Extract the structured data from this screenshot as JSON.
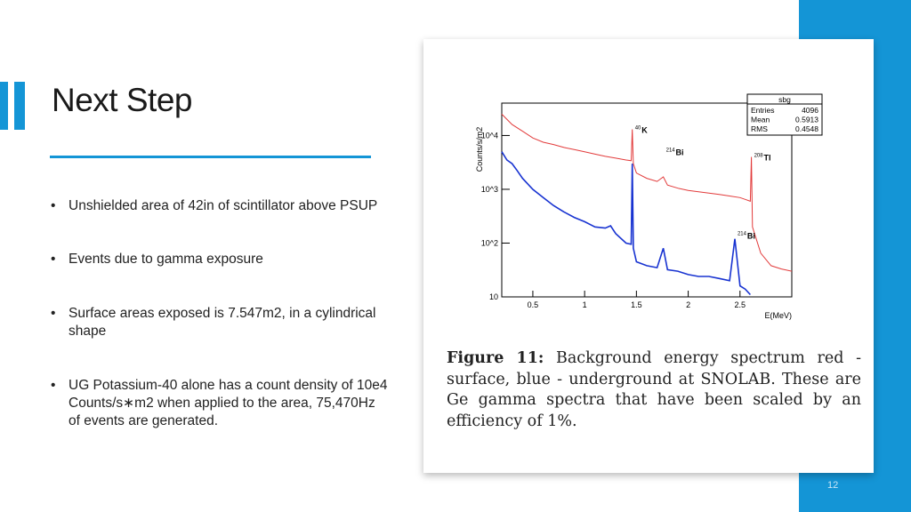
{
  "slide": {
    "title": "Next Step",
    "bullets": [
      "Unshielded area of 42in of scintillator above PSUP",
      "Events due to gamma exposure",
      "Surface areas exposed is 7.547m2, in a cylindrical shape",
      "UG Potassium-40 alone has a count density of 10e4 Counts/s∗m2 when applied to the area, 75,470Hz of events are generated."
    ],
    "page_number": "12"
  },
  "figure": {
    "caption_label": "Figure 11:",
    "caption_text": "Background energy spectrum red - surface, blue - underground at SNOLAB. These are Ge gamma spectra that have been scaled by an efficiency of 1%."
  },
  "chart_data": {
    "type": "line",
    "xlabel": "E(MeV)",
    "ylabel": "Counts/s/m2",
    "xlim": [
      0.2,
      3.0
    ],
    "ylim": [
      10,
      40000
    ],
    "y_scale": "log",
    "x_ticks": [
      0.5,
      1,
      1.5,
      2,
      2.5
    ],
    "x_tick_labels": [
      "0.5",
      "1",
      "1.5",
      "2",
      "2.5"
    ],
    "y_ticks": [
      10,
      100,
      1000,
      10000
    ],
    "y_tick_labels": [
      "10",
      "10^2",
      "10^3",
      "10^4"
    ],
    "stats_box": {
      "title": "sbg",
      "rows": [
        {
          "label": "Entries",
          "value": "4096"
        },
        {
          "label": "Mean",
          "value": "0.5913"
        },
        {
          "label": "RMS",
          "value": "0.4548"
        }
      ]
    },
    "annotations": [
      {
        "sup": "40",
        "text": "K",
        "x": 1.46,
        "y": 13000
      },
      {
        "sup": "214",
        "text": "Bi",
        "x": 1.76,
        "y": 5000
      },
      {
        "sup": "208",
        "text": "Tl",
        "x": 2.61,
        "y": 4000
      },
      {
        "sup": "214",
        "text": "Bi",
        "x": 2.45,
        "y": 140
      }
    ],
    "series": [
      {
        "color": "#e23b3b",
        "x": [
          0.2,
          0.3,
          0.4,
          0.5,
          0.6,
          0.7,
          0.8,
          0.9,
          1.0,
          1.1,
          1.2,
          1.3,
          1.4,
          1.45,
          1.46,
          1.47,
          1.5,
          1.6,
          1.7,
          1.76,
          1.8,
          1.9,
          2.0,
          2.1,
          2.2,
          2.3,
          2.4,
          2.5,
          2.55,
          2.6,
          2.61,
          2.62,
          2.7,
          2.8,
          2.9,
          3.0
        ],
        "y": [
          25000,
          16000,
          12000,
          9000,
          7500,
          6800,
          6000,
          5500,
          5000,
          4500,
          4100,
          3800,
          3500,
          3400,
          13000,
          3000,
          2000,
          1600,
          1400,
          1700,
          1200,
          1050,
          950,
          900,
          850,
          800,
          750,
          700,
          650,
          600,
          4000,
          200,
          65,
          38,
          33,
          30
        ]
      },
      {
        "color": "#1833d1",
        "x": [
          0.2,
          0.25,
          0.3,
          0.35,
          0.4,
          0.5,
          0.6,
          0.7,
          0.8,
          0.9,
          1.0,
          1.1,
          1.2,
          1.25,
          1.3,
          1.4,
          1.45,
          1.46,
          1.47,
          1.5,
          1.6,
          1.7,
          1.76,
          1.8,
          1.9,
          2.0,
          2.1,
          2.2,
          2.3,
          2.4,
          2.45,
          2.5,
          2.55,
          2.6
        ],
        "y": [
          5000,
          3500,
          3000,
          2200,
          1600,
          1000,
          700,
          500,
          380,
          300,
          250,
          200,
          190,
          210,
          150,
          100,
          95,
          3000,
          80,
          45,
          38,
          35,
          80,
          32,
          30,
          26,
          24,
          24,
          22,
          20,
          120,
          16,
          14,
          11
        ]
      }
    ]
  }
}
